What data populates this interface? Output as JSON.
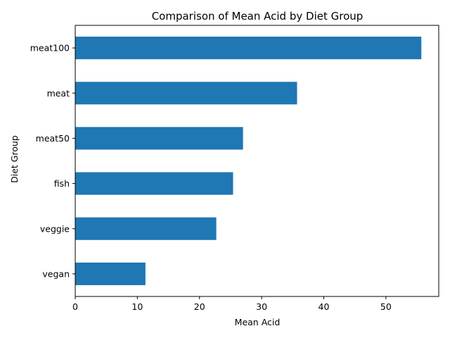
{
  "chart_data": {
    "type": "bar",
    "orientation": "horizontal",
    "title": "Comparison of Mean Acid by Diet Group",
    "xlabel": "Mean Acid",
    "ylabel": "Diet Group",
    "categories": [
      "vegan",
      "veggie",
      "fish",
      "meat50",
      "meat",
      "meat100"
    ],
    "values": [
      11.3,
      22.7,
      25.4,
      27.0,
      35.7,
      55.7
    ],
    "xlim": [
      0,
      58.5
    ],
    "xticks": [
      0,
      10,
      20,
      30,
      40,
      50
    ],
    "grid": false,
    "legend": "none",
    "bar_color": "#1f77b4"
  }
}
